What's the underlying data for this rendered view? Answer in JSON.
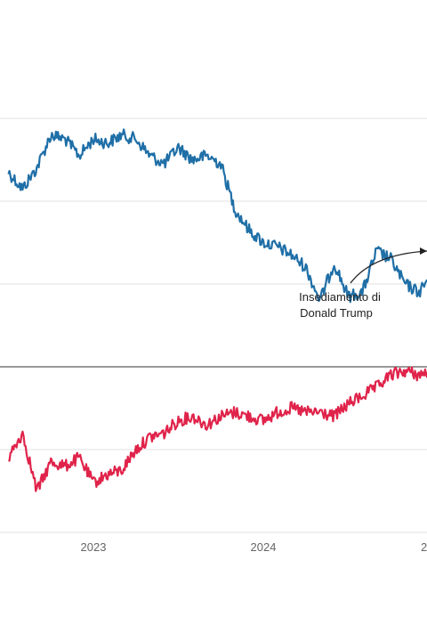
{
  "chart_data": [
    {
      "type": "line",
      "series": [
        {
          "color": "#1f6fa7",
          "x": [
            "2022-07",
            "2022-08",
            "2022-09",
            "2022-10",
            "2022-11",
            "2022-12",
            "2023-01",
            "2023-02",
            "2023-03",
            "2023-04",
            "2023-05",
            "2023-06",
            "2023-07",
            "2023-08",
            "2023-09",
            "2023-10",
            "2023-11",
            "2023-12",
            "2024-01",
            "2024-02",
            "2024-03",
            "2024-04",
            "2024-05",
            "2024-06",
            "2024-07",
            "2024-08",
            "2024-09",
            "2024-10",
            "2024-11",
            "2024-12",
            "2025-01"
          ],
          "values": [
            0.35,
            0.15,
            0.4,
            0.8,
            0.75,
            0.55,
            0.75,
            0.7,
            0.8,
            0.75,
            0.55,
            0.45,
            0.65,
            0.5,
            0.55,
            0.45,
            -0.1,
            -0.35,
            -0.5,
            -0.55,
            -0.65,
            -0.8,
            -1.2,
            -0.75,
            -1.15,
            -1.1,
            -0.6,
            -0.7,
            -1.0,
            -1.1,
            -0.85
          ]
        }
      ],
      "grid": true,
      "annotation": {
        "lines": [
          "Insediamento di",
          "Donald Trump"
        ],
        "color": "#222222"
      }
    },
    {
      "type": "line",
      "series": [
        {
          "color": "#e0234a",
          "x": [
            "2022-07",
            "2022-08",
            "2022-09",
            "2022-10",
            "2022-11",
            "2022-12",
            "2023-01",
            "2023-02",
            "2023-03",
            "2023-04",
            "2023-05",
            "2023-06",
            "2023-07",
            "2023-08",
            "2023-09",
            "2023-10",
            "2023-11",
            "2023-12",
            "2024-01",
            "2024-02",
            "2024-03",
            "2024-04",
            "2024-05",
            "2024-06",
            "2024-07",
            "2024-08",
            "2024-09",
            "2024-10",
            "2024-11",
            "2024-12",
            "2025-01"
          ],
          "values": [
            -1.1,
            -0.8,
            -1.5,
            -1.15,
            -1.2,
            -1.1,
            -1.4,
            -1.3,
            -1.25,
            -1.0,
            -0.85,
            -0.8,
            -0.65,
            -0.6,
            -0.7,
            -0.6,
            -0.55,
            -0.6,
            -0.65,
            -0.55,
            -0.5,
            -0.55,
            -0.55,
            -0.6,
            -0.45,
            -0.35,
            -0.25,
            -0.1,
            -0.05,
            -0.1,
            -0.05
          ]
        }
      ],
      "grid": true,
      "x_ticks": [
        "2023",
        "2024",
        "2"
      ],
      "baseline": {
        "color": "#333333"
      }
    }
  ]
}
